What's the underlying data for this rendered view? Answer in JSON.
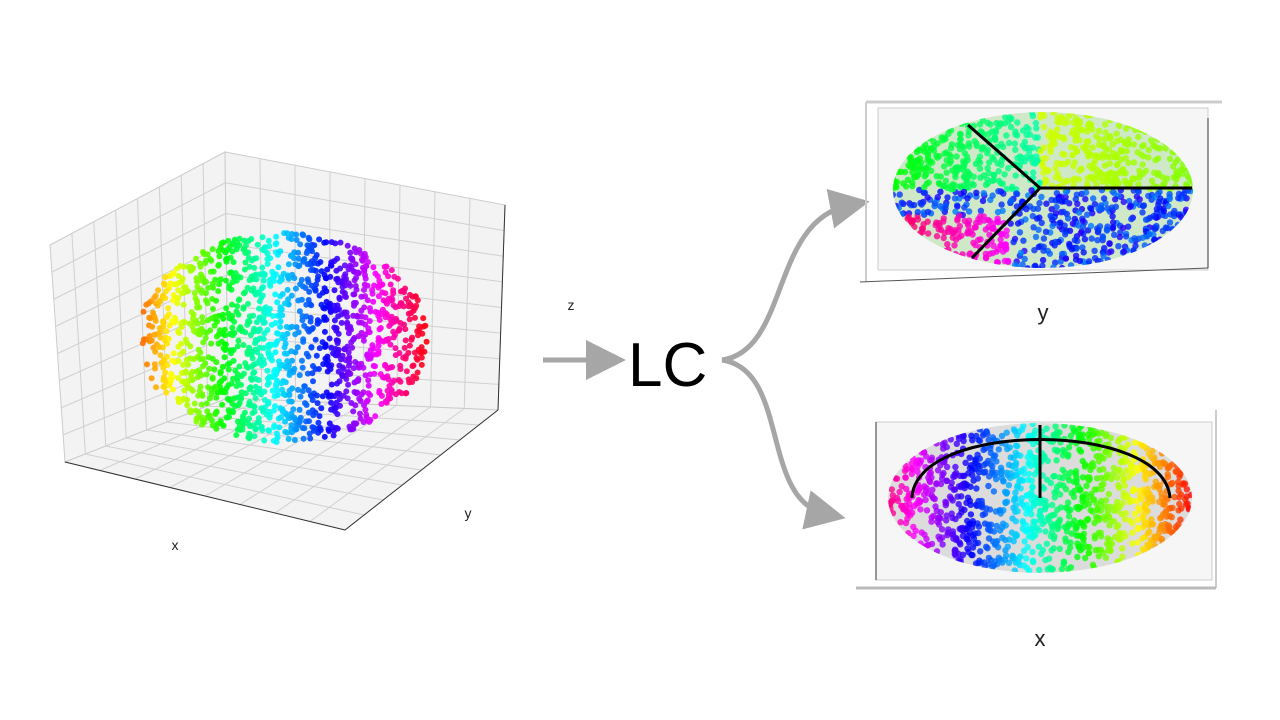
{
  "left_plot": {
    "x_label": "x",
    "y_label": "y",
    "z_label": "z"
  },
  "operator": {
    "label": "LC"
  },
  "top_plot": {
    "axis_label": "y"
  },
  "bottom_plot": {
    "axis_label": "x"
  }
}
